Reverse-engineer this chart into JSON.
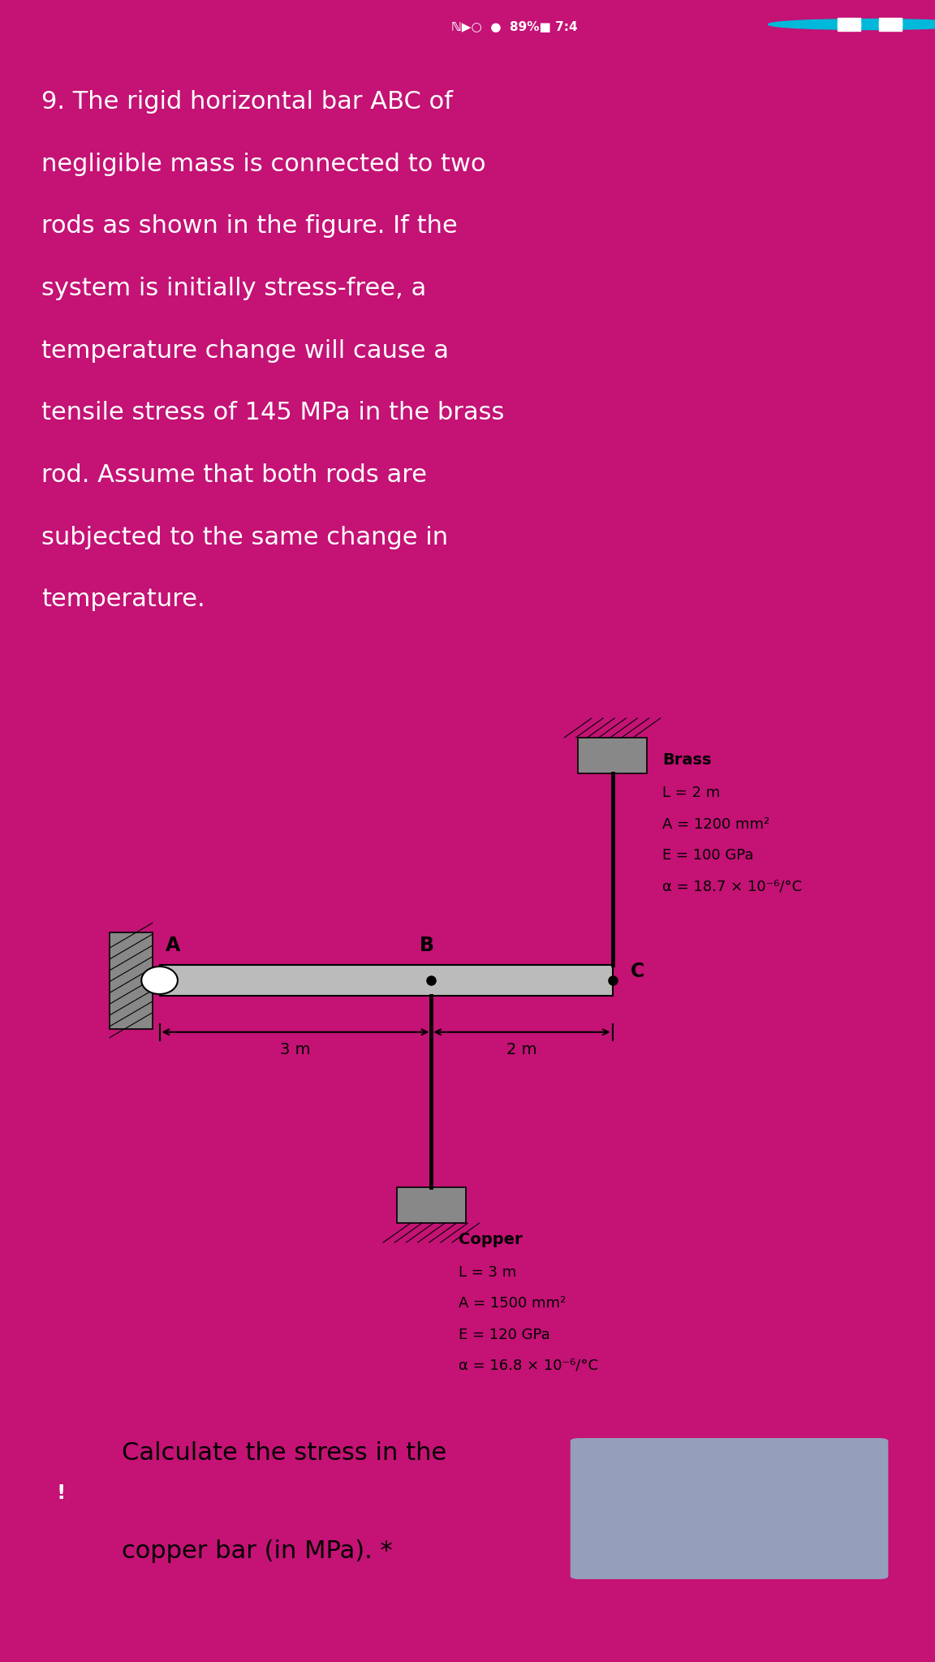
{
  "question_text_lines": [
    "9. The rigid horizontal bar ABC of",
    "negligible mass is connected to two",
    "rods as shown in the figure. If the",
    "system is initially stress-free, a",
    "temperature change will cause a",
    "tensile stress of 145 MPa in the brass",
    "rod. Assume that both rods are",
    "subjected to the same change in",
    "temperature."
  ],
  "brass_label": "Brass",
  "brass_L": "L = 2 m",
  "brass_A": "A = 1200 mm²",
  "brass_E": "E = 100 GPa",
  "brass_alpha": "α = 18.7 × 10⁻⁶/°C",
  "copper_label": "Copper",
  "copper_L": "L = 3 m",
  "copper_A": "A = 1500 mm²",
  "copper_E": "E = 120 GPa",
  "copper_alpha": "α = 16.8 × 10⁻⁶/°C",
  "label_A": "A",
  "label_B": "B",
  "label_C": "C",
  "dim_3m": "3 m",
  "dim_2m": "2 m",
  "footer_line1": "Calculate the stress in the",
  "footer_line2": "copper bar (in MPa). *",
  "pink_bg": "#c41275",
  "lighter_pink": "#d4359a",
  "diagram_bg": "#dde8ee",
  "footer_bg": "#e8d0dc",
  "status_bar_bg": "#b01068",
  "wall_color": "#888888",
  "bar_color": "#bbbbbb",
  "rod_color": "#333333",
  "text_white": "#ffffff",
  "text_dark": "#111111",
  "teal_btn": "#00b8d9"
}
